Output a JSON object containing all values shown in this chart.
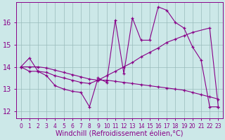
{
  "xlabel": "Windchill (Refroidissement éolien,°C)",
  "bg_color": "#cce8e8",
  "line_color": "#880088",
  "grid_color": "#99bbbb",
  "xlim_min": -0.5,
  "xlim_max": 23.5,
  "ylim_min": 11.7,
  "ylim_max": 16.9,
  "yticks": [
    12,
    13,
    14,
    15,
    16
  ],
  "xticks": [
    0,
    1,
    2,
    3,
    4,
    5,
    6,
    7,
    8,
    9,
    10,
    11,
    12,
    13,
    14,
    15,
    16,
    17,
    18,
    19,
    20,
    21,
    22,
    23
  ],
  "line1_x": [
    0,
    1,
    2,
    3,
    4,
    5,
    6,
    7,
    8,
    9,
    10,
    11,
    12,
    13,
    14,
    15,
    16,
    17,
    18,
    19,
    20,
    21,
    22,
    23
  ],
  "line1_y": [
    14.0,
    14.4,
    13.8,
    13.6,
    13.15,
    13.0,
    12.9,
    12.85,
    12.2,
    13.5,
    13.3,
    16.1,
    13.7,
    16.2,
    15.2,
    15.2,
    16.7,
    16.55,
    16.0,
    15.75,
    14.9,
    14.3,
    12.2,
    12.2
  ],
  "line2_x": [
    0,
    1,
    2,
    3,
    4,
    5,
    6,
    7,
    8,
    9,
    10,
    11,
    12,
    13,
    14,
    15,
    16,
    17,
    18,
    19,
    20,
    22,
    23
  ],
  "line2_y": [
    14.0,
    13.8,
    13.8,
    13.75,
    13.6,
    13.5,
    13.4,
    13.3,
    13.25,
    13.4,
    13.6,
    13.8,
    14.0,
    14.2,
    14.45,
    14.65,
    14.85,
    15.1,
    15.25,
    15.4,
    15.55,
    15.75,
    12.2
  ],
  "line3_x": [
    0,
    1,
    2,
    3,
    4,
    5,
    6,
    7,
    8,
    9,
    10,
    11,
    12,
    13,
    14,
    15,
    16,
    17,
    18,
    19,
    20,
    21,
    22,
    23
  ],
  "line3_y": [
    14.0,
    14.0,
    14.0,
    13.95,
    13.85,
    13.75,
    13.65,
    13.55,
    13.45,
    13.4,
    13.4,
    13.35,
    13.3,
    13.25,
    13.2,
    13.15,
    13.1,
    13.05,
    13.0,
    12.95,
    12.85,
    12.75,
    12.65,
    12.55
  ],
  "font_size_xlabel": 7,
  "font_size_ytick": 7,
  "font_size_xtick": 5.5
}
